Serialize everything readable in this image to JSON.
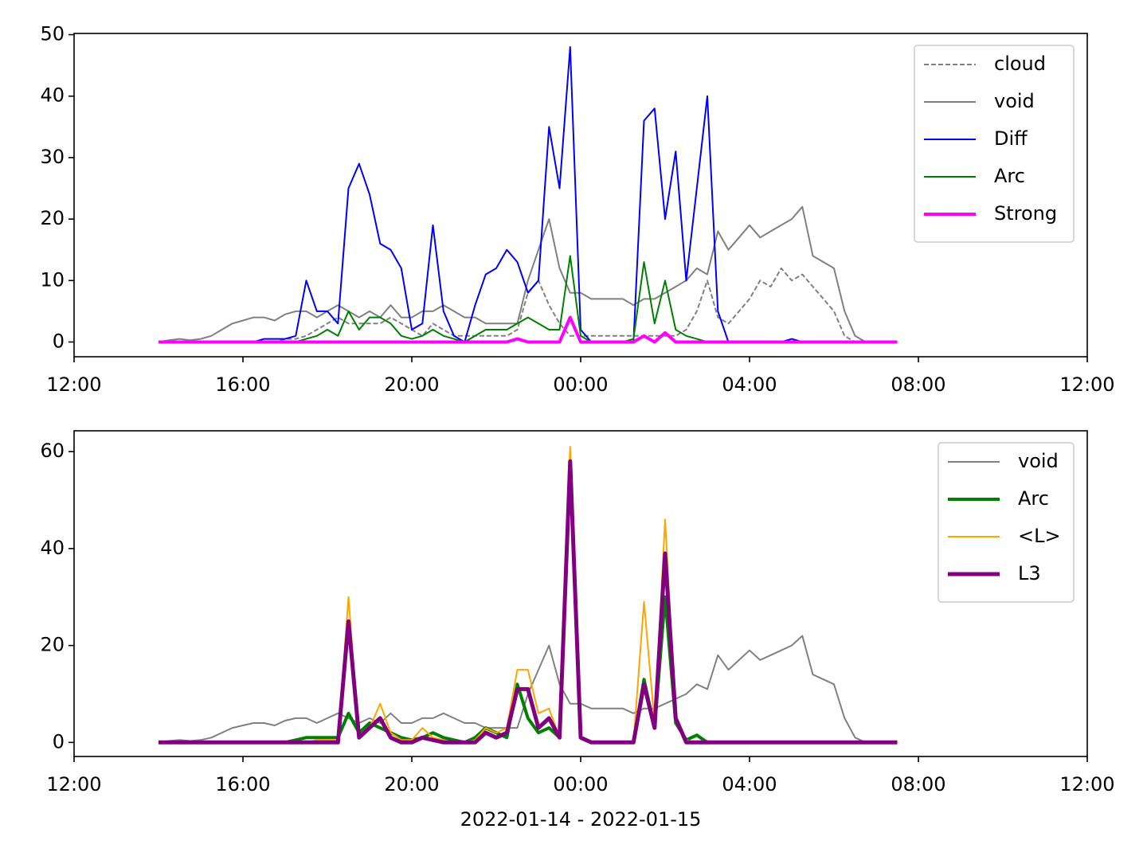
{
  "chart_data": [
    {
      "type": "line",
      "x": [
        "2022-01-14T14:00",
        "2022-01-14T14:15",
        "2022-01-14T14:30",
        "2022-01-14T14:45",
        "2022-01-14T15:00",
        "2022-01-14T15:15",
        "2022-01-14T15:30",
        "2022-01-14T15:45",
        "2022-01-14T16:00",
        "2022-01-14T16:15",
        "2022-01-14T16:30",
        "2022-01-14T16:45",
        "2022-01-14T17:00",
        "2022-01-14T17:15",
        "2022-01-14T17:30",
        "2022-01-14T17:45",
        "2022-01-14T18:00",
        "2022-01-14T18:15",
        "2022-01-14T18:30",
        "2022-01-14T18:45",
        "2022-01-14T19:00",
        "2022-01-14T19:15",
        "2022-01-14T19:30",
        "2022-01-14T19:45",
        "2022-01-14T20:00",
        "2022-01-14T20:15",
        "2022-01-14T20:30",
        "2022-01-14T20:45",
        "2022-01-14T21:00",
        "2022-01-14T21:15",
        "2022-01-14T21:30",
        "2022-01-14T21:45",
        "2022-01-14T22:00",
        "2022-01-14T22:15",
        "2022-01-14T22:30",
        "2022-01-14T22:45",
        "2022-01-14T23:00",
        "2022-01-14T23:15",
        "2022-01-14T23:30",
        "2022-01-14T23:45",
        "2022-01-15T00:00",
        "2022-01-15T00:15",
        "2022-01-15T00:30",
        "2022-01-15T00:45",
        "2022-01-15T01:00",
        "2022-01-15T01:15",
        "2022-01-15T01:30",
        "2022-01-15T01:45",
        "2022-01-15T02:00",
        "2022-01-15T02:15",
        "2022-01-15T02:30",
        "2022-01-15T02:45",
        "2022-01-15T03:00",
        "2022-01-15T03:15",
        "2022-01-15T03:30",
        "2022-01-15T03:45",
        "2022-01-15T04:00",
        "2022-01-15T04:15",
        "2022-01-15T04:30",
        "2022-01-15T04:45",
        "2022-01-15T05:00",
        "2022-01-15T05:15",
        "2022-01-15T05:30",
        "2022-01-15T05:45",
        "2022-01-15T06:00",
        "2022-01-15T06:15",
        "2022-01-15T06:30",
        "2022-01-15T06:45",
        "2022-01-15T07:00",
        "2022-01-15T07:15",
        "2022-01-15T07:30"
      ],
      "series": [
        {
          "name": "cloud",
          "color": "#808080",
          "dash": true,
          "width": 2,
          "values": [
            0,
            0,
            0,
            0,
            0,
            0,
            0,
            0,
            0,
            0,
            0,
            0,
            0.5,
            0.5,
            1,
            2,
            3,
            4,
            3,
            3,
            3,
            3,
            4,
            3,
            2,
            1,
            3,
            2,
            1,
            1,
            1,
            1,
            1,
            1,
            2,
            8,
            10,
            6,
            3,
            1,
            1,
            1,
            1,
            1,
            1,
            1,
            1,
            1,
            1,
            1,
            2,
            5,
            10,
            4,
            3,
            5,
            7,
            10,
            9,
            12,
            10,
            11,
            9,
            7,
            5,
            1,
            0,
            0,
            0,
            0,
            0
          ]
        },
        {
          "name": "void",
          "color": "#808080",
          "width": 2,
          "values": [
            0,
            0.3,
            0.5,
            0.3,
            0.5,
            1,
            2,
            3,
            3.5,
            4,
            4,
            3.5,
            4.5,
            5,
            5,
            4,
            5,
            6,
            5,
            4,
            5,
            4,
            6,
            4,
            4,
            5,
            5,
            6,
            5,
            4,
            4,
            3,
            3,
            3,
            3,
            10,
            15,
            20,
            12,
            8,
            8,
            7,
            7,
            7,
            7,
            6,
            7,
            7,
            8,
            9,
            10,
            12,
            11,
            18,
            15,
            17,
            19,
            17,
            18,
            19,
            20,
            22,
            14,
            13,
            12,
            5,
            1,
            0,
            0,
            0,
            0
          ]
        },
        {
          "name": "Diff",
          "color": "#0000ff",
          "width": 2,
          "values": [
            0,
            0,
            0,
            0,
            0,
            0,
            0,
            0,
            0,
            0,
            0.5,
            0.5,
            0.5,
            1,
            10,
            5,
            5,
            3,
            25,
            29,
            24,
            16,
            15,
            12,
            2,
            3,
            19,
            5,
            1,
            0,
            6,
            11,
            12,
            15,
            13,
            8,
            10,
            35,
            25,
            48,
            2,
            0,
            0,
            0,
            0,
            0,
            36,
            38,
            20,
            31,
            10,
            25,
            40,
            5,
            0,
            0,
            0,
            0,
            0,
            0,
            0.5,
            0,
            0,
            0,
            0,
            0,
            0,
            0,
            0,
            0,
            0
          ]
        },
        {
          "name": "Arc",
          "color": "#008000",
          "width": 2,
          "values": [
            0,
            0,
            0,
            0,
            0,
            0,
            0,
            0,
            0,
            0,
            0,
            0,
            0,
            0,
            0.5,
            1,
            2,
            1,
            5,
            2,
            4,
            4,
            3,
            1,
            0.5,
            1,
            2,
            1,
            0.5,
            0,
            1,
            2,
            2,
            2,
            3,
            4,
            3,
            2,
            2,
            14,
            1,
            0,
            0,
            0,
            0,
            0.5,
            13,
            3,
            10,
            2,
            1,
            0.5,
            0,
            0,
            0,
            0,
            0,
            0,
            0,
            0,
            0,
            0,
            0,
            0,
            0,
            0,
            0,
            0,
            0,
            0,
            0
          ]
        },
        {
          "name": "Strong",
          "color": "#ff00ff",
          "width": 4,
          "values": [
            0,
            0,
            0,
            0,
            0,
            0,
            0,
            0,
            0,
            0,
            0,
            0,
            0,
            0,
            0,
            0,
            0,
            0,
            0,
            0,
            0,
            0,
            0,
            0,
            0,
            0,
            0,
            0,
            0,
            0,
            0,
            0,
            0,
            0,
            0.5,
            0,
            0,
            0,
            0,
            4,
            0,
            0,
            0,
            0,
            0,
            0,
            1,
            0,
            1.5,
            0,
            0,
            0,
            0,
            0,
            0,
            0,
            0,
            0,
            0,
            0,
            0,
            0,
            0,
            0,
            0,
            0,
            0,
            0,
            0,
            0,
            0
          ]
        }
      ],
      "xlim": [
        "2022-01-14T12:00",
        "2022-01-15T12:00"
      ],
      "xticks": [
        {
          "value": "2022-01-14T12:00",
          "label": "12:00"
        },
        {
          "value": "2022-01-14T16:00",
          "label": "16:00"
        },
        {
          "value": "2022-01-14T20:00",
          "label": "20:00"
        },
        {
          "value": "2022-01-15T00:00",
          "label": "00:00"
        },
        {
          "value": "2022-01-15T04:00",
          "label": "04:00"
        },
        {
          "value": "2022-01-15T08:00",
          "label": "08:00"
        },
        {
          "value": "2022-01-15T12:00",
          "label": "12:00"
        }
      ],
      "ylim": [
        -2.4,
        50.2
      ],
      "yticks": [
        0,
        10,
        20,
        30,
        40,
        50
      ],
      "legend": "upper right"
    },
    {
      "type": "line",
      "x": [
        "2022-01-14T14:00",
        "2022-01-14T14:15",
        "2022-01-14T14:30",
        "2022-01-14T14:45",
        "2022-01-14T15:00",
        "2022-01-14T15:15",
        "2022-01-14T15:30",
        "2022-01-14T15:45",
        "2022-01-14T16:00",
        "2022-01-14T16:15",
        "2022-01-14T16:30",
        "2022-01-14T16:45",
        "2022-01-14T17:00",
        "2022-01-14T17:15",
        "2022-01-14T17:30",
        "2022-01-14T17:45",
        "2022-01-14T18:00",
        "2022-01-14T18:15",
        "2022-01-14T18:30",
        "2022-01-14T18:45",
        "2022-01-14T19:00",
        "2022-01-14T19:15",
        "2022-01-14T19:30",
        "2022-01-14T19:45",
        "2022-01-14T20:00",
        "2022-01-14T20:15",
        "2022-01-14T20:30",
        "2022-01-14T20:45",
        "2022-01-14T21:00",
        "2022-01-14T21:15",
        "2022-01-14T21:30",
        "2022-01-14T21:45",
        "2022-01-14T22:00",
        "2022-01-14T22:15",
        "2022-01-14T22:30",
        "2022-01-14T22:45",
        "2022-01-14T23:00",
        "2022-01-14T23:15",
        "2022-01-14T23:30",
        "2022-01-14T23:45",
        "2022-01-15T00:00",
        "2022-01-15T00:15",
        "2022-01-15T00:30",
        "2022-01-15T00:45",
        "2022-01-15T01:00",
        "2022-01-15T01:15",
        "2022-01-15T01:30",
        "2022-01-15T01:45",
        "2022-01-15T02:00",
        "2022-01-15T02:15",
        "2022-01-15T02:30",
        "2022-01-15T02:45",
        "2022-01-15T03:00",
        "2022-01-15T03:15",
        "2022-01-15T03:30",
        "2022-01-15T03:45",
        "2022-01-15T04:00",
        "2022-01-15T04:15",
        "2022-01-15T04:30",
        "2022-01-15T04:45",
        "2022-01-15T05:00",
        "2022-01-15T05:15",
        "2022-01-15T05:30",
        "2022-01-15T05:45",
        "2022-01-15T06:00",
        "2022-01-15T06:15",
        "2022-01-15T06:30",
        "2022-01-15T06:45",
        "2022-01-15T07:00",
        "2022-01-15T07:15",
        "2022-01-15T07:30"
      ],
      "series": [
        {
          "name": "void",
          "color": "#808080",
          "width": 2,
          "values": [
            0,
            0.3,
            0.5,
            0.3,
            0.5,
            1,
            2,
            3,
            3.5,
            4,
            4,
            3.5,
            4.5,
            5,
            5,
            4,
            5,
            6,
            5,
            4,
            5,
            4,
            6,
            4,
            4,
            5,
            5,
            6,
            5,
            4,
            4,
            3,
            3,
            3,
            3,
            10,
            15,
            20,
            12,
            8,
            8,
            7,
            7,
            7,
            7,
            6,
            7,
            7,
            8,
            9,
            10,
            12,
            11,
            18,
            15,
            17,
            19,
            17,
            18,
            19,
            20,
            22,
            14,
            13,
            12,
            5,
            1,
            0,
            0,
            0,
            0
          ]
        },
        {
          "name": "Arc",
          "color": "#008000",
          "width": 4,
          "values": [
            0,
            0,
            0,
            0,
            0,
            0,
            0,
            0,
            0,
            0,
            0,
            0,
            0,
            0.5,
            1,
            1,
            1,
            1,
            6,
            2,
            4,
            3,
            2,
            1,
            0.5,
            1,
            2,
            1,
            0.5,
            0,
            1,
            3,
            2,
            1,
            12,
            5,
            2,
            3,
            1,
            58,
            1,
            0,
            0,
            0,
            0,
            0,
            13,
            3,
            30,
            4,
            0.5,
            1.5,
            0,
            0,
            0,
            0,
            0,
            0,
            0,
            0,
            0,
            0,
            0,
            0,
            0,
            0,
            0,
            0,
            0,
            0,
            0
          ]
        },
        {
          "name": "<L>",
          "color": "#ffa500",
          "width": 2,
          "values": [
            0,
            0,
            0,
            0,
            0,
            0,
            0,
            0,
            0,
            0,
            0,
            0,
            0,
            0,
            0,
            0.5,
            0.5,
            0.5,
            30,
            1,
            3,
            8,
            2,
            0.5,
            0.5,
            3,
            1,
            0.5,
            0,
            0,
            0.5,
            3,
            2,
            3,
            15,
            15,
            6,
            7,
            1,
            61,
            1,
            0,
            0,
            0,
            0,
            0,
            29,
            4,
            46,
            5,
            0.5,
            0,
            0,
            0,
            0,
            0,
            0,
            0,
            0,
            0,
            0,
            0,
            0,
            0,
            0,
            0,
            0,
            0,
            0,
            0,
            0
          ]
        },
        {
          "name": "L3",
          "color": "#800080",
          "width": 5,
          "values": [
            0,
            0,
            0,
            0,
            0,
            0,
            0,
            0,
            0,
            0,
            0,
            0,
            0,
            0,
            0,
            0,
            0,
            0,
            25,
            1,
            3,
            5,
            1,
            0,
            0,
            1,
            0.5,
            0,
            0,
            0,
            0,
            2,
            1,
            2,
            11,
            11,
            3,
            5,
            1,
            58,
            1,
            0,
            0,
            0,
            0,
            0,
            12,
            3,
            39,
            5,
            0,
            0,
            0,
            0,
            0,
            0,
            0,
            0,
            0,
            0,
            0,
            0,
            0,
            0,
            0,
            0,
            0,
            0,
            0,
            0,
            0
          ]
        }
      ],
      "xlim": [
        "2022-01-14T12:00",
        "2022-01-15T12:00"
      ],
      "xticks": [
        {
          "value": "2022-01-14T12:00",
          "label": "12:00"
        },
        {
          "value": "2022-01-14T16:00",
          "label": "16:00"
        },
        {
          "value": "2022-01-14T20:00",
          "label": "20:00"
        },
        {
          "value": "2022-01-15T00:00",
          "label": "00:00"
        },
        {
          "value": "2022-01-15T04:00",
          "label": "04:00"
        },
        {
          "value": "2022-01-15T08:00",
          "label": "08:00"
        },
        {
          "value": "2022-01-15T12:00",
          "label": "12:00"
        }
      ],
      "xlabel": "2022-01-14 - 2022-01-15",
      "ylim": [
        -2.9,
        64.3
      ],
      "yticks": [
        0,
        20,
        40,
        60
      ],
      "legend": "upper right"
    }
  ]
}
